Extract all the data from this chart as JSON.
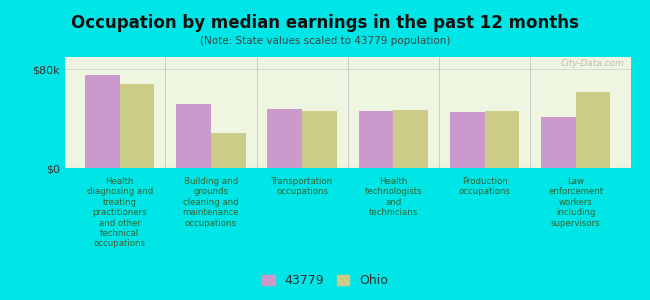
{
  "title": "Occupation by median earnings in the past 12 months",
  "subtitle": "(Note: State values scaled to 43779 population)",
  "background_color": "#00e5e5",
  "plot_bg_color": "#eef5e0",
  "categories": [
    "Health\ndiagnosing and\ntreating\npractitioners\nand other\ntechnical\noccupations",
    "Building and\ngrounds\ncleaning and\nmaintenance\noccupations",
    "Transportation\noccupations",
    "Health\ntechnologists\nand\ntechnicians",
    "Production\noccupations",
    "Law\nenforcement\nworkers\nincluding\nsupervisors"
  ],
  "values_local": [
    75000,
    52000,
    48000,
    46000,
    45000,
    41000
  ],
  "values_state": [
    68000,
    28000,
    46000,
    47000,
    46000,
    62000
  ],
  "color_local": "#cc99cc",
  "color_state": "#cccc88",
  "ylim": [
    0,
    90000
  ],
  "yticks": [
    0,
    80000
  ],
  "ytick_labels": [
    "$0",
    "$80k"
  ],
  "legend_label_local": "43779",
  "legend_label_state": "Ohio",
  "watermark": "City-Data.com"
}
